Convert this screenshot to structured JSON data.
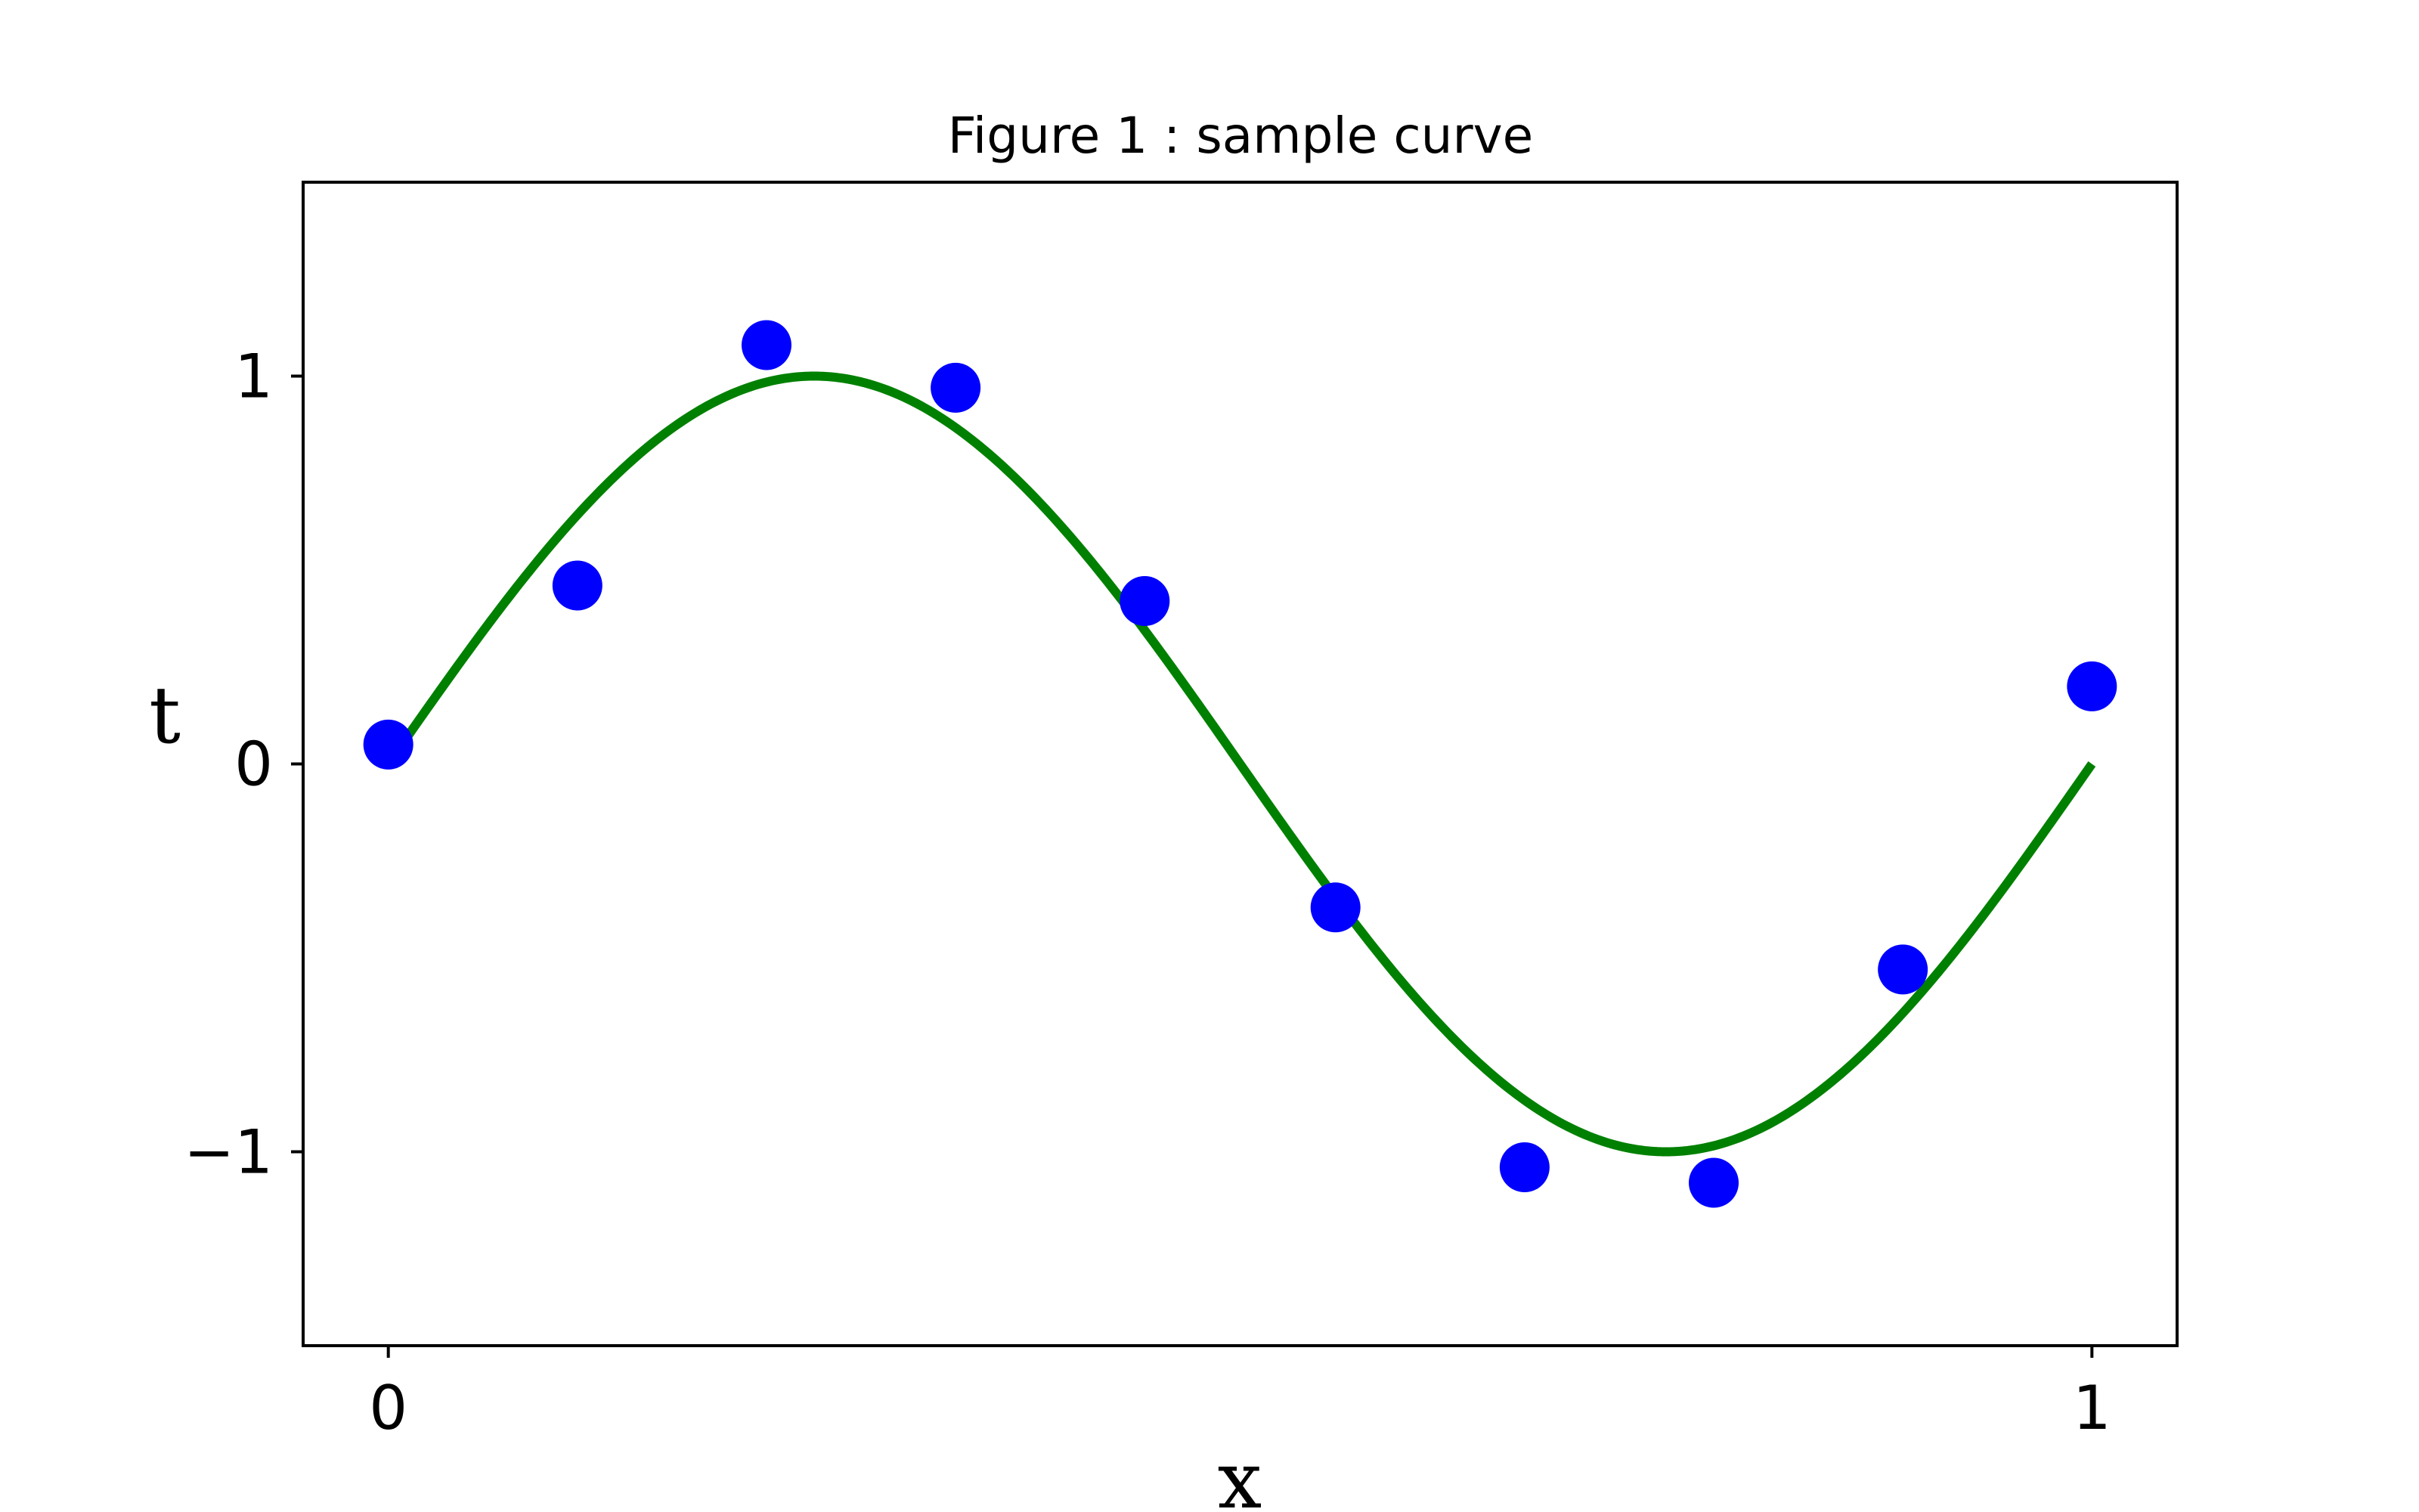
{
  "chart_data": {
    "type": "scatter",
    "title": "Figure 1 : sample curve",
    "xlabel": "x",
    "ylabel": "t",
    "xlim": [
      -0.05,
      1.05
    ],
    "ylim": [
      -1.5,
      1.5
    ],
    "x_ticks": [
      0,
      1
    ],
    "x_tick_labels": [
      "0",
      "1"
    ],
    "y_ticks": [
      -1,
      0,
      1
    ],
    "y_tick_labels": [
      "−1",
      "0",
      "1"
    ],
    "grid": false,
    "legend": "none",
    "series": [
      {
        "kind": "points",
        "color": "#0000ff",
        "x": [
          0.0,
          0.111,
          0.222,
          0.333,
          0.444,
          0.556,
          0.667,
          0.778,
          0.889,
          1.0
        ],
        "y": [
          0.05,
          0.46,
          1.08,
          0.97,
          0.42,
          -0.37,
          -1.04,
          -1.08,
          -0.53,
          0.2
        ]
      },
      {
        "kind": "line",
        "color": "#008000",
        "function": "sin(2*pi*x)",
        "x_range": [
          0,
          1
        ]
      }
    ]
  }
}
